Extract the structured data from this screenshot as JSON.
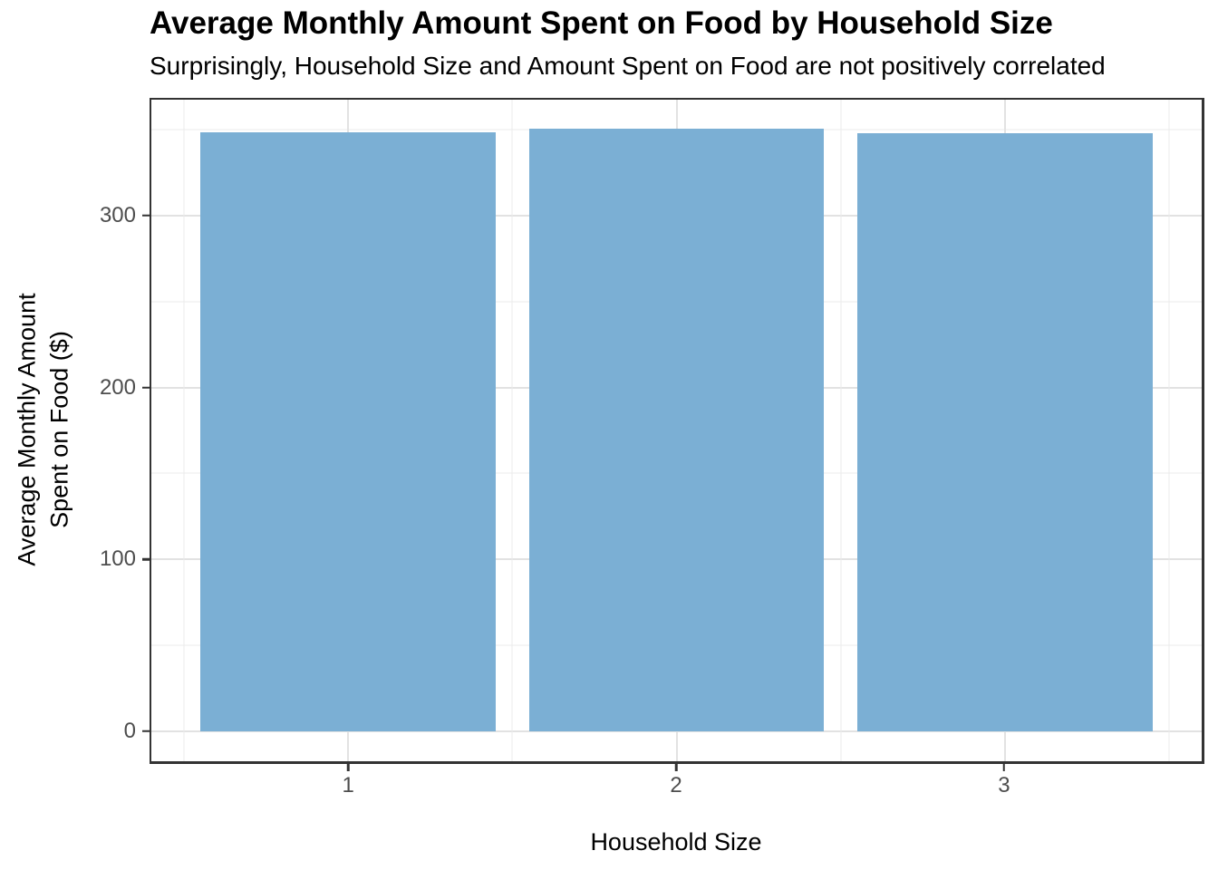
{
  "figure": {
    "background": "#FFFFFF"
  },
  "chart_data": {
    "type": "bar",
    "title": "Average Monthly Amount Spent on Food by Household Size",
    "subtitle": "Surprisingly, Household Size and Amount Spent on Food are not positively correlated",
    "xlabel": "Household Size",
    "ylabel": "Average Monthly Amount Spent on Food ($)",
    "ylabel_lines": [
      "Average Monthly Amount",
      "Spent on Food ($)"
    ],
    "categories": [
      "1",
      "2",
      "3"
    ],
    "x_positions": [
      1,
      2,
      3
    ],
    "values": [
      348.5,
      350.5,
      348
    ],
    "bar_width_fraction": 0.9,
    "xlim": [
      0.4,
      3.6
    ],
    "ylim": [
      -17.5,
      367.5
    ],
    "yticks": [
      0,
      100,
      200,
      300
    ],
    "yticks_minor": [
      50,
      150,
      250,
      350
    ],
    "xticks_minor": [
      0.5,
      1.5,
      2.5,
      3.5
    ],
    "grid": "major+minor horizontal and vertical, light gray on white panel",
    "legend": "none",
    "colors": {
      "bar_fill": "#7BAFD4",
      "panel_border": "#333333",
      "tick_mark": "#333333",
      "grid_major": "#E2E2E2",
      "grid_minor": "#EBEBEB",
      "tick_label_text": "#4D4D4D",
      "title_text": "#000000"
    }
  }
}
